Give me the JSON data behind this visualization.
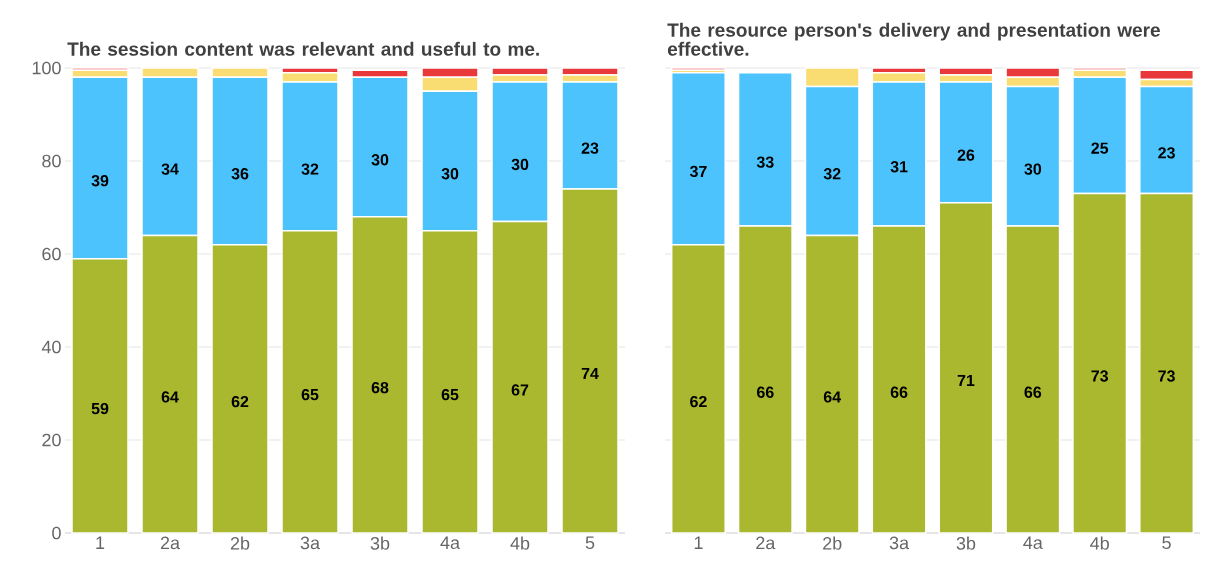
{
  "chart_data": [
    {
      "type": "bar",
      "title": "The session content was relevant and useful to me.",
      "stacked": true,
      "categories": [
        "1",
        "2a",
        "2b",
        "3a",
        "3b",
        "4a",
        "4b",
        "5"
      ],
      "ylim": [
        0,
        100
      ],
      "yticks": [
        0,
        20,
        40,
        60,
        80,
        100
      ],
      "grid": "y",
      "series": [
        {
          "color": "#a9b82e",
          "values": [
            59,
            64,
            62,
            65,
            68,
            65,
            67,
            74
          ],
          "value_labels": [
            "59",
            "64",
            "62",
            "65",
            "68",
            "65",
            "67",
            "74"
          ]
        },
        {
          "color": "#4dc3fd",
          "values": [
            39,
            34,
            36,
            32,
            30,
            30,
            30,
            23
          ],
          "value_labels": [
            "39",
            "34",
            "36",
            "32",
            "30",
            "30",
            "30",
            "23"
          ]
        },
        {
          "color": "#f9dd72",
          "values": [
            1.5,
            2,
            2,
            2,
            0,
            3,
            1.5,
            1.5
          ]
        },
        {
          "color": "#e8383a",
          "values": [
            0.5,
            0,
            0,
            1,
            1.5,
            2,
            1.5,
            1.5
          ]
        }
      ]
    },
    {
      "type": "bar",
      "title": "The resource person's delivery and presentation were effective.",
      "stacked": true,
      "categories": [
        "1",
        "2a",
        "2b",
        "3a",
        "3b",
        "4a",
        "4b",
        "5"
      ],
      "ylim": [
        0,
        100
      ],
      "yticks": [
        0,
        20,
        40,
        60,
        80,
        100
      ],
      "grid": "y",
      "tick_labels": "x",
      "series": [
        {
          "color": "#a9b82e",
          "values": [
            62,
            66,
            64,
            66,
            71,
            66,
            73,
            73
          ],
          "value_labels": [
            "62",
            "66",
            "64",
            "66",
            "71",
            "66",
            "73",
            "73"
          ]
        },
        {
          "color": "#4dc3fd",
          "values": [
            37,
            33,
            32,
            31,
            26,
            30,
            25,
            23
          ],
          "value_labels": [
            "37",
            "33",
            "32",
            "31",
            "26",
            "30",
            "25",
            "23"
          ]
        },
        {
          "color": "#f9dd72",
          "values": [
            0.5,
            0,
            4,
            2,
            1.5,
            2,
            1.5,
            1.5
          ]
        },
        {
          "color": "#e8383a",
          "values": [
            0.5,
            0,
            0,
            1,
            1.5,
            2,
            0.5,
            2
          ]
        }
      ]
    }
  ]
}
